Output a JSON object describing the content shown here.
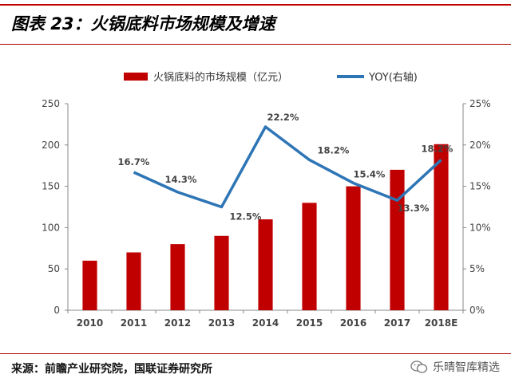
{
  "figure": {
    "title": "图表 23：火锅底料市场规模及增速",
    "source": "来源：前瞻产业研究院，国联证券研究所",
    "watermark": "乐晴智库精选"
  },
  "colors": {
    "bar": "#c00000",
    "line": "#2e75b6",
    "rule": "#c00000"
  },
  "chart_data": {
    "type": "bar",
    "categories": [
      "2010",
      "2011",
      "2012",
      "2013",
      "2014",
      "2015",
      "2016",
      "2017",
      "2018E"
    ],
    "series": [
      {
        "name": "火锅底料的市场规模（亿元）",
        "type": "bar",
        "axis": "left",
        "values": [
          60,
          70,
          80,
          90,
          110,
          130,
          150,
          170,
          201
        ]
      },
      {
        "name": "YOY(右轴)",
        "type": "line",
        "axis": "right",
        "values": [
          null,
          16.7,
          14.3,
          12.5,
          22.2,
          18.2,
          15.4,
          13.3,
          18.2
        ],
        "labels": [
          "",
          "16.7%",
          "14.3%",
          "12.5%",
          "22.2%",
          "18.2%",
          "15.4%",
          "13.3%",
          "18.2%"
        ]
      }
    ],
    "ylim_left": [
      0,
      250
    ],
    "yticks_left": [
      "0",
      "50",
      "100",
      "150",
      "200",
      "250"
    ],
    "ylim_right": [
      0,
      25
    ],
    "yticks_right": [
      "0%",
      "5%",
      "10%",
      "15%",
      "20%",
      "25%"
    ],
    "legend_position": "top",
    "grid": false
  }
}
